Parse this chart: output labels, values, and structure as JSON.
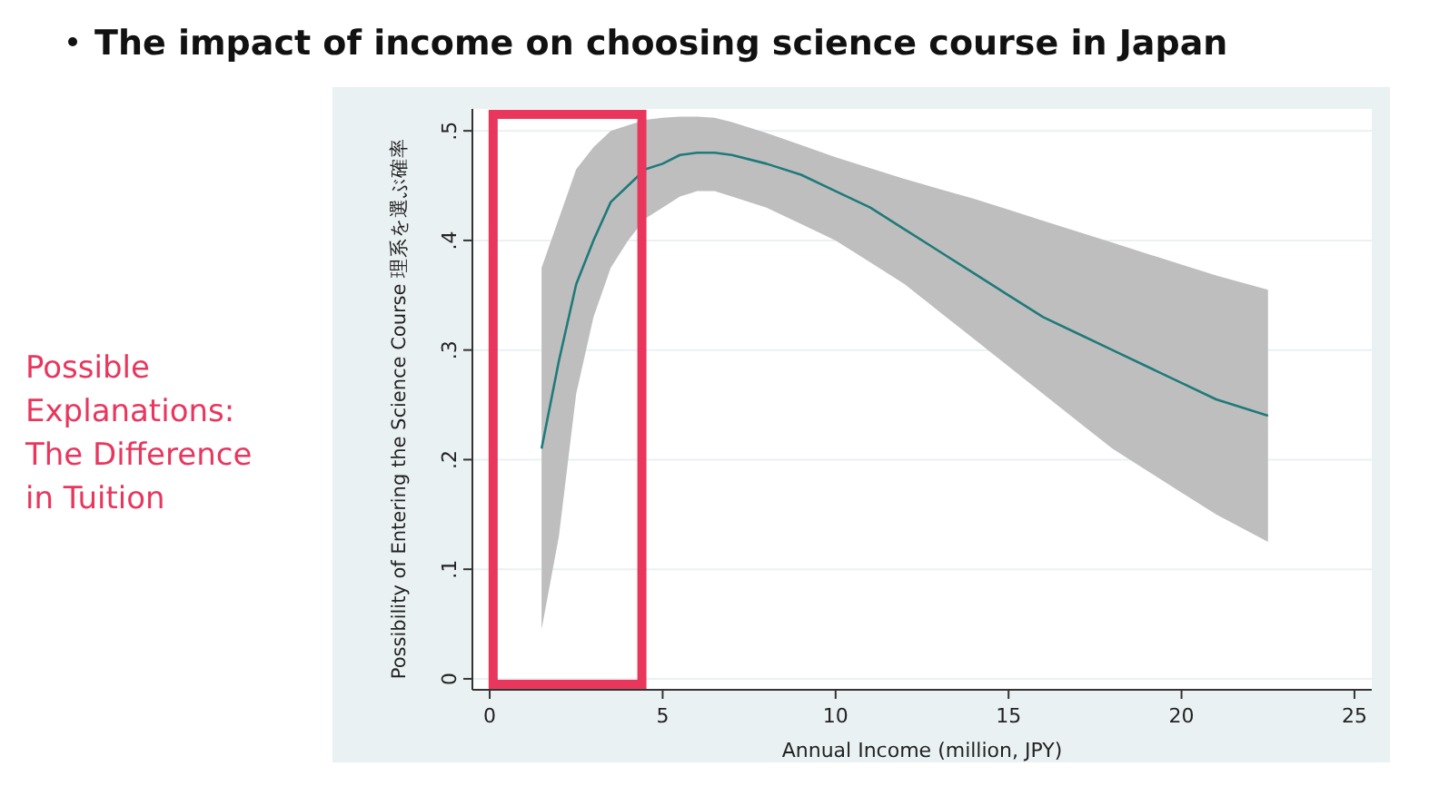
{
  "chart_data": {
    "type": "line",
    "title": "The impact of income on choosing science course in Japan",
    "xlabel": "Annual Income (million, JPY)",
    "ylabel": "Possibility of Entering the Science Course 理系を選ぶ確率",
    "annotations": [
      "Possible Explanations: The Difference in Tuition"
    ],
    "x": [
      1.5,
      2,
      2.5,
      3,
      3.5,
      4,
      4.5,
      5,
      5.5,
      6,
      6.5,
      7,
      8,
      9,
      10,
      11,
      12,
      13,
      14,
      15,
      16,
      17,
      18,
      19,
      20,
      21,
      22.5
    ],
    "series": [
      {
        "color": "#1f7a7a",
        "values": [
          0.21,
          0.29,
          0.36,
          0.4,
          0.435,
          0.45,
          0.465,
          0.47,
          0.478,
          0.48,
          0.48,
          0.478,
          0.47,
          0.46,
          0.445,
          0.43,
          0.41,
          0.39,
          0.37,
          0.35,
          0.33,
          0.315,
          0.3,
          0.285,
          0.27,
          0.255,
          0.24
        ],
        "lower": [
          0.045,
          0.13,
          0.26,
          0.33,
          0.375,
          0.4,
          0.42,
          0.43,
          0.44,
          0.445,
          0.445,
          0.44,
          0.43,
          0.415,
          0.4,
          0.38,
          0.36,
          0.335,
          0.31,
          0.285,
          0.26,
          0.235,
          0.21,
          0.19,
          0.17,
          0.15,
          0.125
        ],
        "upper": [
          0.375,
          0.42,
          0.465,
          0.485,
          0.5,
          0.505,
          0.51,
          0.512,
          0.513,
          0.513,
          0.512,
          0.508,
          0.498,
          0.487,
          0.476,
          0.466,
          0.456,
          0.447,
          0.438,
          0.428,
          0.418,
          0.408,
          0.398,
          0.388,
          0.378,
          0.368,
          0.355
        ]
      }
    ],
    "xlim": [
      -0.5,
      25.5
    ],
    "xticks": [
      0,
      5,
      10,
      15,
      20,
      25
    ],
    "ylim": [
      -0.01,
      0.52
    ],
    "yticks": [
      0,
      {
        "value": 0.1,
        "label": ".1"
      },
      {
        "value": 0.2,
        "label": ".2"
      },
      {
        "value": 0.3,
        "label": ".3"
      },
      {
        "value": 0.4,
        "label": ".4"
      },
      {
        "value": 0.5,
        "label": ".5"
      }
    ],
    "grid": "y",
    "marker": "none",
    "line_style": "solid"
  }
}
